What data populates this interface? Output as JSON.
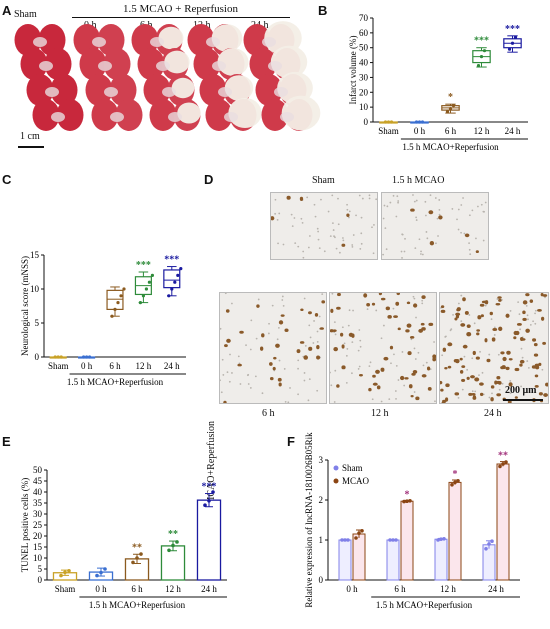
{
  "panels": {
    "A": "A",
    "B": "B",
    "C": "C",
    "D": "D",
    "E": "E",
    "F": "F"
  },
  "panelA": {
    "sham": "Sham",
    "group": "1.5 MCAO + Reperfusion",
    "times": [
      "0 h",
      "6 h",
      "12 h",
      "24 h"
    ],
    "scale": "1 cm"
  },
  "panelD": {
    "top_labels": [
      "Sham",
      "1.5 h  MCAO"
    ],
    "side": "1.5 h MCAO+Reperfusion",
    "bottom_labels": [
      "6 h",
      "12 h",
      "24 h"
    ],
    "scale": "200 μm"
  },
  "chart_data": [
    {
      "id": "B",
      "type": "box",
      "ylabel": "Infarct volume (%)",
      "xlabel": "1.5 h MCAO+Reperfusion",
      "categories": [
        "Sham",
        "0 h",
        "6 h",
        "12 h",
        "24 h"
      ],
      "ylim": [
        0,
        70
      ],
      "yticks": [
        0,
        10,
        20,
        30,
        40,
        50,
        60,
        70
      ],
      "colors": [
        "#c9a227",
        "#3a6fd1",
        "#8b5a1f",
        "#2e8b3a",
        "#1a1aa0"
      ],
      "series": [
        {
          "min": 0,
          "q1": 0,
          "median": 0,
          "q3": 0,
          "max": 0,
          "points": [
            0,
            0,
            0
          ]
        },
        {
          "min": 0,
          "q1": 0,
          "median": 0,
          "q3": 0,
          "max": 0,
          "points": [
            0,
            0,
            0
          ]
        },
        {
          "min": 6,
          "q1": 8,
          "median": 9.5,
          "q3": 11,
          "max": 12,
          "points": [
            7,
            9,
            11
          ]
        },
        {
          "min": 37,
          "q1": 40,
          "median": 44,
          "q3": 48,
          "max": 50,
          "points": [
            38,
            44,
            48
          ]
        },
        {
          "min": 47,
          "q1": 50,
          "median": 53,
          "q3": 56,
          "max": 58,
          "points": [
            49,
            53,
            57
          ]
        }
      ],
      "significance": [
        "",
        "",
        "*",
        "***",
        "***"
      ]
    },
    {
      "id": "C",
      "type": "box",
      "ylabel": "Neurological score (mNSS)",
      "xlabel": "1.5 h MCAO+Reperfusion",
      "categories": [
        "Sham",
        "0 h",
        "6 h",
        "12 h",
        "24 h"
      ],
      "ylim": [
        0,
        15
      ],
      "yticks": [
        0,
        5,
        10,
        15
      ],
      "colors": [
        "#c9a227",
        "#3a6fd1",
        "#8b5a1f",
        "#2e8b3a",
        "#1a1aa0"
      ],
      "series": [
        {
          "min": 0,
          "q1": 0,
          "median": 0,
          "q3": 0,
          "max": 0,
          "points": [
            0,
            0,
            0
          ]
        },
        {
          "min": 0,
          "q1": 0,
          "median": 0,
          "q3": 0,
          "max": 0,
          "points": [
            0,
            0,
            0
          ]
        },
        {
          "min": 6,
          "q1": 7,
          "median": 8.5,
          "q3": 9.8,
          "max": 10.3,
          "points": [
            6,
            7,
            8,
            9,
            10
          ]
        },
        {
          "min": 8,
          "q1": 9.2,
          "median": 10.5,
          "q3": 11.8,
          "max": 12.5,
          "points": [
            8,
            9,
            10,
            11,
            12
          ]
        },
        {
          "min": 9,
          "q1": 10.2,
          "median": 11.3,
          "q3": 12.8,
          "max": 13.3,
          "points": [
            9,
            10,
            11,
            12,
            13
          ]
        }
      ],
      "significance": [
        "",
        "",
        "",
        "***",
        "***"
      ]
    },
    {
      "id": "E",
      "type": "bar",
      "ylabel": "TUNEL positive cells (%)",
      "xlabel": "1.5 h MCAO+Reperfusion",
      "categories": [
        "Sham",
        "0 h",
        "6 h",
        "12 h",
        "24 h"
      ],
      "ylim": [
        0,
        50
      ],
      "yticks": [
        0,
        5,
        10,
        15,
        20,
        25,
        30,
        35,
        40,
        45,
        50
      ],
      "colors": [
        "#c9a227",
        "#3a6fd1",
        "#8b5a1f",
        "#2e8b3a",
        "#1a1aa0"
      ],
      "values": [
        3.3,
        3.6,
        9.6,
        15.5,
        36.3
      ],
      "errors": [
        1.2,
        1.8,
        2.1,
        2.2,
        3.0
      ],
      "points": [
        [
          2,
          3.5,
          4.2
        ],
        [
          2,
          3.4,
          5
        ],
        [
          8,
          10,
          11.8
        ],
        [
          13.5,
          15.7,
          17.3
        ],
        [
          34,
          36,
          40
        ]
      ],
      "significance": [
        "",
        "",
        "**",
        "**",
        "***"
      ]
    },
    {
      "id": "F",
      "type": "bar",
      "ylabel": "Relative expression of lncRNA-1810026B05Rik",
      "xlabel": "1.5 h MCAO+Reperfusion",
      "categories": [
        "0 h",
        "6 h",
        "12 h",
        "24 h"
      ],
      "ylim": [
        0,
        3
      ],
      "yticks": [
        0,
        1,
        2,
        3
      ],
      "series": [
        {
          "name": "Sham",
          "color": "#8080e8",
          "values": [
            1.0,
            1.0,
            1.02,
            0.88
          ],
          "errors": [
            0.02,
            0.01,
            0.02,
            0.1
          ],
          "points": [
            [
              1,
              1,
              1
            ],
            [
              1,
              1,
              1
            ],
            [
              1,
              1.02,
              1.03
            ],
            [
              0.78,
              0.9,
              0.97
            ]
          ]
        },
        {
          "name": "MCAO",
          "color": "#8b4513",
          "values": [
            1.15,
            1.97,
            2.44,
            2.9
          ],
          "errors": [
            0.1,
            0.02,
            0.06,
            0.06
          ],
          "points": [
            [
              1.05,
              1.17,
              1.23
            ],
            [
              1.96,
              1.97,
              1.98
            ],
            [
              2.38,
              2.44,
              2.48
            ],
            [
              2.84,
              2.9,
              2.95
            ]
          ]
        }
      ],
      "significance": [
        "",
        "*",
        "*",
        "**"
      ]
    }
  ]
}
